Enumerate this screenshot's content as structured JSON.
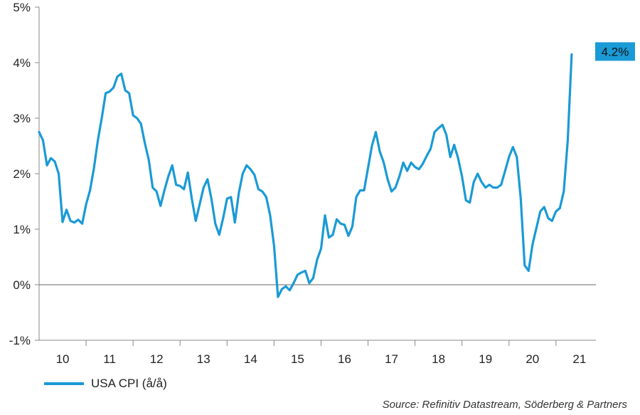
{
  "chart_data": {
    "type": "line",
    "x_labels": [
      "10",
      "11",
      "12",
      "13",
      "14",
      "15",
      "16",
      "17",
      "18",
      "19",
      "20",
      "21"
    ],
    "y_ticks": [
      -1,
      0,
      1,
      2,
      3,
      4,
      5
    ],
    "y_tick_labels": [
      "-1%",
      "0%",
      "1%",
      "2%",
      "3%",
      "4%",
      "5%"
    ],
    "ylim": [
      -1,
      5
    ],
    "series": [
      {
        "name": "USA CPI (å/å)",
        "color": "#1a9ad6",
        "values": [
          2.75,
          2.6,
          2.15,
          2.28,
          2.22,
          2.0,
          1.13,
          1.35,
          1.15,
          1.12,
          1.17,
          1.1,
          1.45,
          1.7,
          2.1,
          2.6,
          3.0,
          3.45,
          3.48,
          3.55,
          3.75,
          3.8,
          3.5,
          3.45,
          3.05,
          3.0,
          2.9,
          2.55,
          2.25,
          1.75,
          1.68,
          1.42,
          1.7,
          1.95,
          2.15,
          1.8,
          1.78,
          1.72,
          2.02,
          1.55,
          1.15,
          1.45,
          1.75,
          1.9,
          1.55,
          1.1,
          0.9,
          1.2,
          1.55,
          1.58,
          1.12,
          1.65,
          2.0,
          2.15,
          2.08,
          1.98,
          1.72,
          1.68,
          1.58,
          1.25,
          0.7,
          -0.22,
          -0.08,
          -0.03,
          -0.1,
          0.03,
          0.18,
          0.22,
          0.25,
          0.03,
          0.12,
          0.45,
          0.65,
          1.25,
          0.85,
          0.9,
          1.18,
          1.1,
          1.08,
          0.88,
          1.05,
          1.58,
          1.7,
          1.7,
          2.1,
          2.5,
          2.75,
          2.4,
          2.2,
          1.9,
          1.68,
          1.75,
          1.95,
          2.2,
          2.05,
          2.2,
          2.12,
          2.08,
          2.18,
          2.32,
          2.45,
          2.75,
          2.82,
          2.88,
          2.7,
          2.3,
          2.52,
          2.28,
          1.95,
          1.52,
          1.48,
          1.85,
          2.0,
          1.85,
          1.75,
          1.8,
          1.75,
          1.75,
          1.8,
          2.05,
          2.3,
          2.48,
          2.3,
          1.55,
          0.35,
          0.25,
          0.72,
          1.02,
          1.32,
          1.4,
          1.2,
          1.15,
          1.32,
          1.38,
          1.68,
          2.6,
          4.15
        ]
      }
    ],
    "annotation": {
      "label": "4.2%",
      "value": 4.2
    },
    "legend": "bottom-left",
    "source": "Source: Refinitiv Datastream, Söderberg & Partners",
    "grid": false
  }
}
